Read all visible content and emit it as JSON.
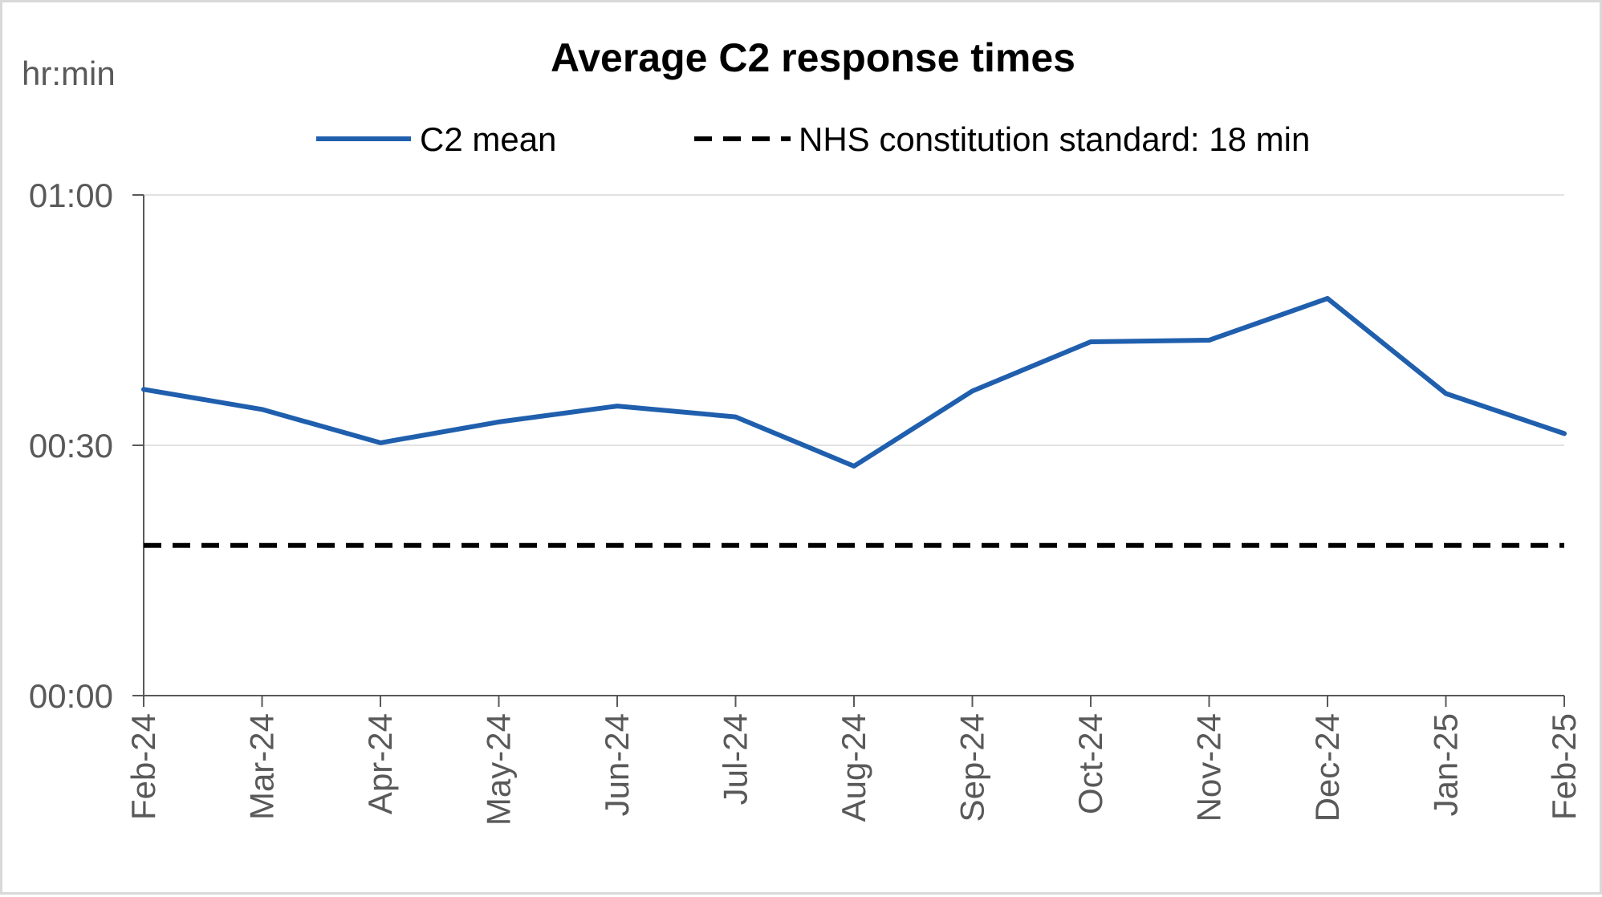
{
  "chart_data": {
    "type": "line",
    "title": "Average C2 response times",
    "ylabel": "hr:min",
    "xlabel": "",
    "categories": [
      "Feb-24",
      "Mar-24",
      "Apr-24",
      "May-24",
      "Jun-24",
      "Jul-24",
      "Aug-24",
      "Sep-24",
      "Oct-24",
      "Nov-24",
      "Dec-24",
      "Jan-25",
      "Feb-25"
    ],
    "yticks": [
      "00:00",
      "00:30",
      "01:00"
    ],
    "ylim": [
      0,
      60
    ],
    "y_unit": "minutes",
    "grid": true,
    "legend_position": "top",
    "series": [
      {
        "name": "C2 mean",
        "color": "#1f5fad",
        "style": "solid",
        "values": [
          36.7,
          34.3,
          30.3,
          32.8,
          34.7,
          33.4,
          27.5,
          36.5,
          42.4,
          42.6,
          47.6,
          36.2,
          31.4
        ]
      },
      {
        "name": "NHS constitution standard: 18 min",
        "color": "#000000",
        "style": "dashed",
        "values": [
          18,
          18,
          18,
          18,
          18,
          18,
          18,
          18,
          18,
          18,
          18,
          18,
          18
        ]
      }
    ]
  }
}
